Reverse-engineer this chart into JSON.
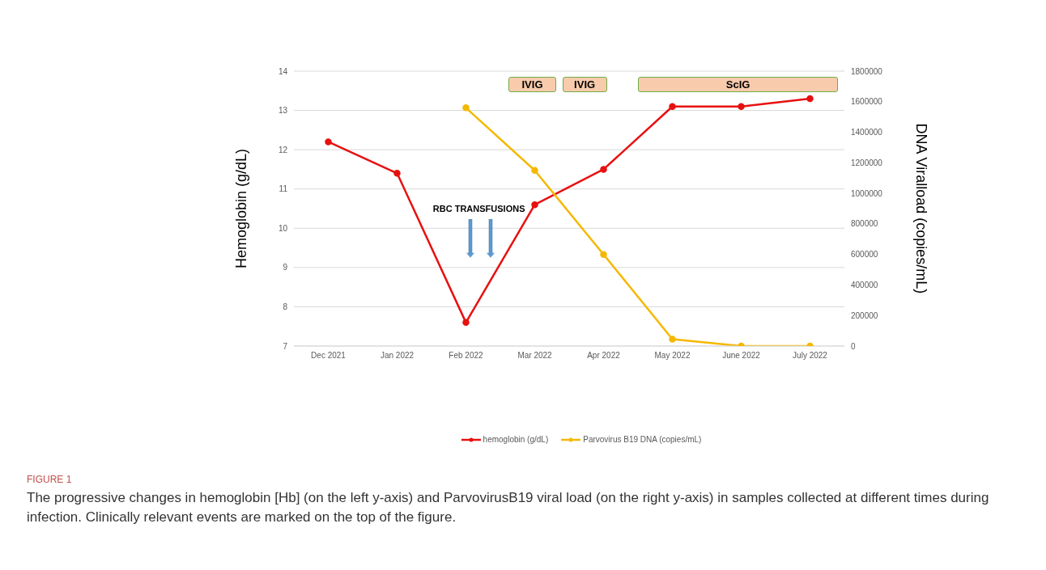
{
  "chart_data": {
    "type": "line",
    "categories": [
      "Dec 2021",
      "Jan 2022",
      "Feb 2022",
      "Mar 2022",
      "Apr 2022",
      "May 2022",
      "June 2022",
      "July 2022"
    ],
    "series": [
      {
        "name": "hemoglobin (g/dL)",
        "color": "#e81010",
        "values": [
          12.2,
          11.4,
          7.6,
          10.6,
          11.5,
          13.1,
          13.1,
          13.3
        ]
      },
      {
        "name": "Parvovirus B19 DNA (copies/mL)",
        "color": "#f5b800",
        "axis": "y2",
        "values": [
          null,
          null,
          1560000,
          1150000,
          600000,
          45000,
          0,
          0
        ]
      }
    ],
    "ylabel": "Hemoglobin (g/dL)",
    "y2label": "DNA Viralload (copies/mL)",
    "ylim": [
      7,
      14
    ],
    "yticks": [
      7,
      8,
      9,
      10,
      11,
      12,
      13,
      14
    ],
    "y2lim": [
      0,
      1800000
    ],
    "y2ticks": [
      0,
      200000,
      400000,
      600000,
      800000,
      1000000,
      1200000,
      1400000,
      1600000,
      1800000
    ],
    "grid": "y",
    "legend": "bottom",
    "marker": "circle",
    "annotations": [
      "IVIG",
      "IVIG",
      "ScIG",
      "RBC TRANSFUSIONS",
      "FIGURE 1",
      "The progressive changes in hemoglobin [Hb] (on the left y-axis) and ParvovirusB19 viral load (on the right y-axis) in samples collected at different times during infection. Clinically relevant events are marked on the top of the figure."
    ]
  }
}
